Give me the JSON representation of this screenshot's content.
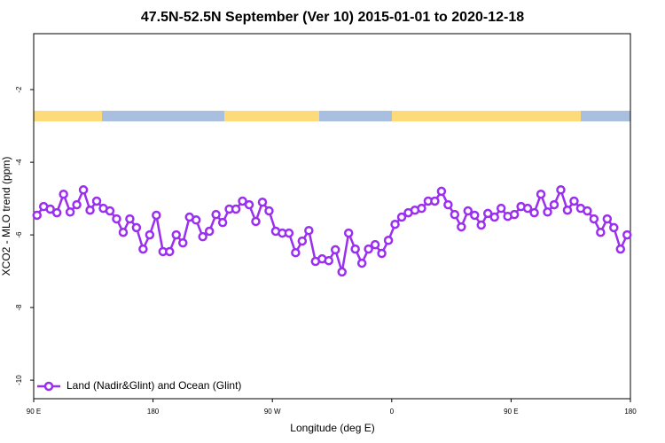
{
  "chart_data": {
    "type": "line",
    "title": "47.5N-52.5N September (Ver 10)   2015-01-01 to 2020-12-18",
    "x_label": "Longitude (deg E)",
    "y_label": "XCO2 - MLO trend (ppm)",
    "xlim": [
      90,
      540
    ],
    "xticks": [
      {
        "value": 90,
        "label": "90 E"
      },
      180,
      {
        "value": 270,
        "label": "90 W"
      },
      {
        "value": 360,
        "label": "0"
      },
      {
        "value": 450,
        "label": "90 E"
      },
      {
        "value": 540,
        "label": "180"
      }
    ],
    "ylim": [
      -10.51,
      -0.46
    ],
    "yticks": [
      -2,
      -4,
      -6,
      -8,
      -10
    ],
    "legend": "bottom-left",
    "x": [
      92.5,
      97.5,
      102.5,
      107.5,
      112.5,
      117.5,
      122.5,
      127.5,
      132.5,
      137.5,
      142.5,
      147.5,
      152.5,
      157.5,
      162.5,
      167.5,
      172.5,
      177.5,
      182.5,
      187.5,
      192.5,
      197.5,
      202.5,
      207.5,
      212.5,
      217.5,
      222.5,
      227.5,
      232.5,
      237.5,
      242.5,
      247.5,
      252.5,
      257.5,
      262.5,
      267.5,
      272.5,
      277.5,
      282.5,
      287.5,
      292.5,
      297.5,
      302.5,
      307.5,
      312.5,
      317.5,
      322.5,
      327.5,
      332.5,
      337.5,
      342.5,
      347.5,
      352.5,
      357.5,
      362.5,
      367.5,
      372.5,
      377.5,
      382.5,
      387.5,
      392.5,
      397.5,
      402.5,
      407.5,
      412.5,
      417.5,
      422.5,
      427.5,
      432.5,
      437.5,
      442.5,
      447.5,
      452.5,
      457.5,
      462.5,
      467.5,
      472.5,
      477.5,
      482.5,
      487.5,
      492.5,
      497.5,
      502.5,
      507.5,
      512.5,
      517.5,
      522.5,
      527.5,
      532.5,
      537.5
    ],
    "series": [
      {
        "name": "Land (Nadir&Glint) and Ocean (Glint)",
        "color": "#9b2ff0",
        "values": [
          -5.46,
          -5.22,
          -5.29,
          -5.39,
          -4.88,
          -5.37,
          -5.17,
          -4.76,
          -5.32,
          -5.07,
          -5.27,
          -5.34,
          -5.56,
          -5.93,
          -5.56,
          -5.8,
          -6.39,
          -6.0,
          -5.46,
          -6.46,
          -6.46,
          -6.0,
          -6.22,
          -5.51,
          -5.59,
          -6.05,
          -5.9,
          -5.44,
          -5.66,
          -5.29,
          -5.29,
          -5.07,
          -5.17,
          -5.63,
          -5.1,
          -5.34,
          -5.9,
          -5.95,
          -5.95,
          -6.49,
          -6.17,
          -5.88,
          -6.73,
          -6.66,
          -6.71,
          -6.41,
          -7.02,
          -5.95,
          -6.39,
          -6.78,
          -6.39,
          -6.27,
          -6.51,
          -6.15,
          -5.71,
          -5.51,
          -5.39,
          -5.32,
          -5.27,
          -5.07,
          -5.07,
          -4.8,
          -5.17,
          -5.44,
          -5.78,
          -5.34,
          -5.46,
          -5.73,
          -5.41,
          -5.51,
          -5.27,
          -5.49,
          -5.44,
          -5.22,
          -5.27,
          -5.39,
          -4.88,
          -5.37,
          -5.17,
          -4.76,
          -5.32,
          -5.07,
          -5.27,
          -5.34,
          -5.56,
          -5.93,
          -5.56,
          -5.8,
          -6.39,
          -6.0
        ]
      }
    ]
  }
}
